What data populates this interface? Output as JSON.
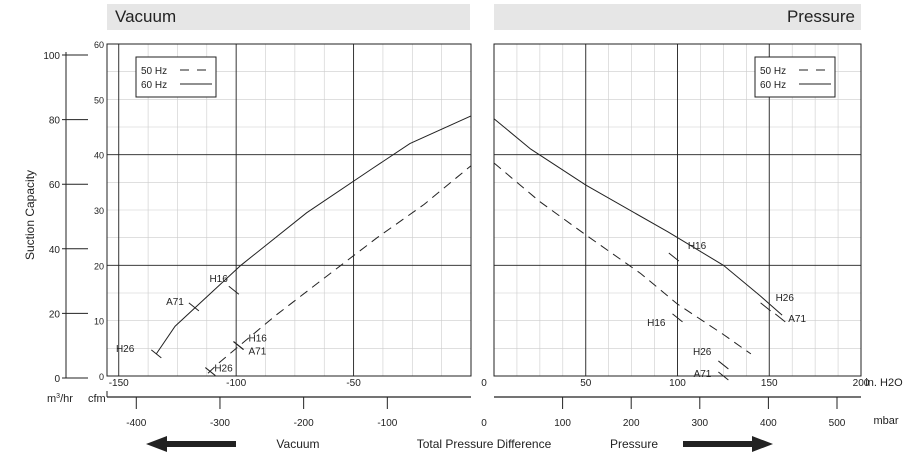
{
  "panels": {
    "left_title": "Vacuum",
    "right_title": "Pressure"
  },
  "chart_data": [
    {
      "type": "line",
      "panel": "Vacuum",
      "x_unit": "in. H2O",
      "y_unit": "cfm",
      "xlim": [
        -155,
        0
      ],
      "ylim": [
        0,
        60
      ],
      "x_ticks": [
        -150,
        -100,
        -50
      ],
      "y_ticks": [
        0,
        10,
        20,
        30,
        40,
        50,
        60
      ],
      "grid": true,
      "legend_position": "top-left",
      "legend": [
        {
          "label": "50 Hz",
          "style": "dashed"
        },
        {
          "label": "60 Hz",
          "style": "solid"
        }
      ],
      "series": [
        {
          "name": "60 Hz",
          "style": "solid",
          "x": [
            -134,
            -126,
            -98,
            -70,
            -42,
            -26,
            0
          ],
          "y": [
            4,
            9,
            20,
            29.5,
            37.5,
            42,
            47
          ]
        },
        {
          "name": "50 Hz",
          "style": "dashed",
          "x": [
            -112,
            -107,
            -83,
            -60,
            -40,
            -20,
            0
          ],
          "y": [
            0.5,
            2.5,
            11,
            18.5,
            25,
            31,
            38
          ]
        }
      ],
      "annotations": [
        {
          "text": "H26",
          "x": -134,
          "y": 4,
          "style": "solid"
        },
        {
          "text": "A71",
          "x": -118,
          "y": 12.5,
          "style": "solid"
        },
        {
          "text": "H16",
          "x": -101,
          "y": 15.5,
          "style": "solid"
        },
        {
          "text": "H26",
          "x": -111,
          "y": 0.8,
          "style": "dashed"
        },
        {
          "text": "H16",
          "x": -99,
          "y": 5.5,
          "style": "dashed"
        },
        {
          "text": "A71",
          "x": -99,
          "y": 5.5,
          "style": "dashed"
        }
      ]
    },
    {
      "type": "line",
      "panel": "Pressure",
      "x_unit": "in. H2O",
      "y_unit": "cfm",
      "xlim": [
        0,
        200
      ],
      "ylim": [
        0,
        60
      ],
      "x_ticks": [
        50,
        100,
        150,
        200
      ],
      "y_ticks": [
        0,
        10,
        20,
        30,
        40,
        50,
        60
      ],
      "grid": true,
      "legend_position": "top-right",
      "legend": [
        {
          "label": "50 Hz",
          "style": "dashed"
        },
        {
          "label": "60 Hz",
          "style": "solid"
        }
      ],
      "series": [
        {
          "name": "60 Hz",
          "style": "solid",
          "x": [
            0,
            20,
            50,
            95,
            125,
            145,
            157
          ],
          "y": [
            46.5,
            41,
            34.5,
            26,
            20,
            14.5,
            11
          ]
        },
        {
          "name": "50 Hz",
          "style": "dashed",
          "x": [
            0,
            25,
            50,
            80,
            100,
            125,
            140
          ],
          "y": [
            38.5,
            31.5,
            25.5,
            18.5,
            13,
            7.5,
            4
          ]
        }
      ],
      "annotations": [
        {
          "text": "H16",
          "x": 98,
          "y": 21.5,
          "style": "solid"
        },
        {
          "text": "H26",
          "x": 148,
          "y": 12.5,
          "style": "solid"
        },
        {
          "text": "A71",
          "x": 156,
          "y": 10.5,
          "style": "solid"
        },
        {
          "text": "H16",
          "x": 100,
          "y": 10.5,
          "style": "dashed"
        },
        {
          "text": "H26",
          "x": 125,
          "y": 2,
          "style": "dashed"
        },
        {
          "text": "A71",
          "x": 125,
          "y": 0,
          "style": "dashed"
        }
      ]
    }
  ],
  "y_axis": {
    "title": "Suction Capacity",
    "m3hr_ticks": [
      0,
      20,
      40,
      60,
      80,
      100
    ],
    "m3hr_label": "m",
    "m3hr_sup": "3",
    "m3hr_suffix": "/hr",
    "cfm_label": "cfm"
  },
  "x_axis": {
    "in_h2o_label": "in. H2O",
    "mbar_label": "mbar",
    "mbar_vacuum_ticks": [
      -400,
      -300,
      -200,
      -100
    ],
    "mbar_pressure_ticks": [
      100,
      200,
      300,
      400,
      500
    ],
    "zero_label": "0",
    "title": "Total Pressure Difference",
    "vacuum_label": "Vacuum",
    "pressure_label": "Pressure"
  }
}
